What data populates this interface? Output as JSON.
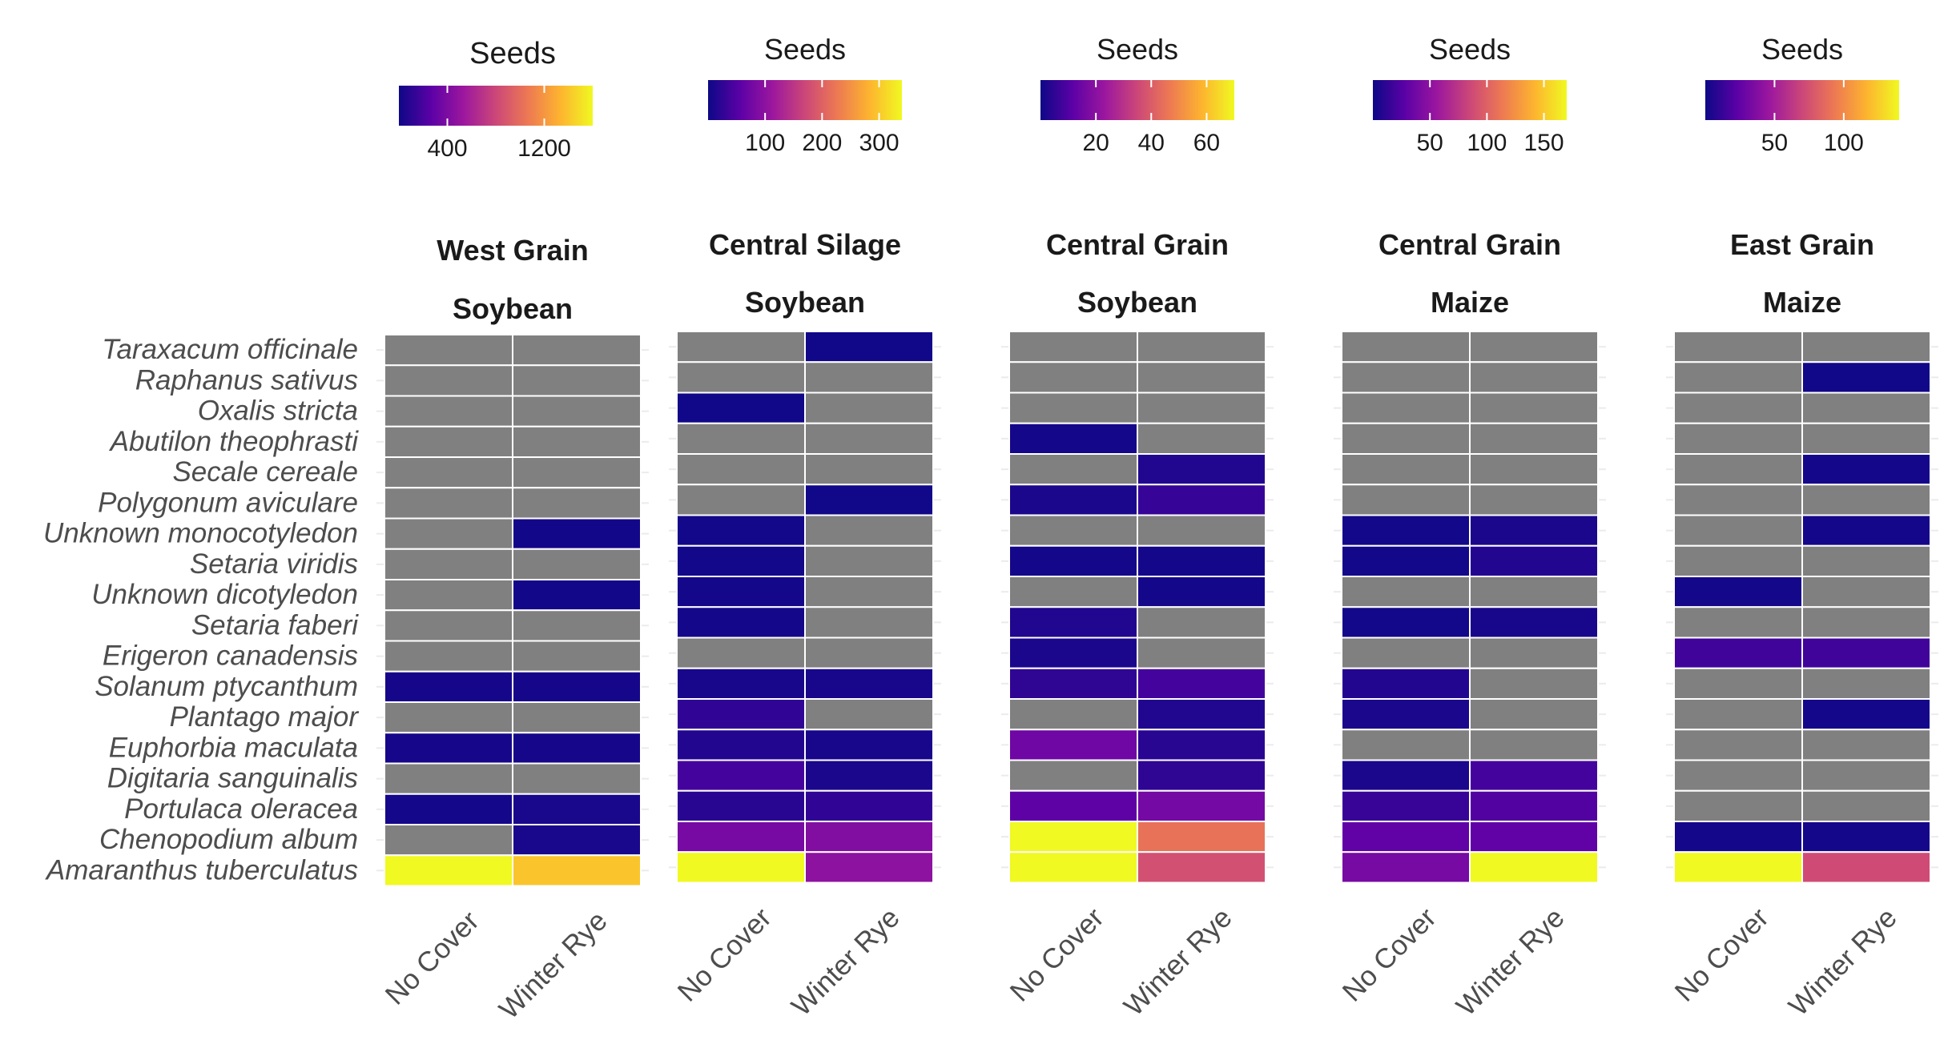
{
  "chart_data": {
    "type": "heatmap",
    "title": "",
    "xlabel": "",
    "ylabel": "",
    "legend_title": "Seeds",
    "missing_color": "#808080",
    "colormap": "plasma",
    "colormap_stops": [
      "#0d0887",
      "#5c01a6",
      "#9c179e",
      "#cc4778",
      "#ed7953",
      "#fdb42f",
      "#f0f921"
    ],
    "species": [
      "Taraxacum officinale",
      "Raphanus sativus",
      "Oxalis stricta",
      "Abutilon theophrasti",
      "Secale cereale",
      "Polygonum aviculare",
      "Unknown monocotyledon",
      "Setaria viridis",
      "Unknown dicotyledon",
      "Setaria faberi",
      "Erigeron canadensis",
      "Solanum ptycanthum",
      "Plantago major",
      "Euphorbia maculata",
      "Digitaria sanguinalis",
      "Portulaca oleracea",
      "Chenopodium album",
      "Amaranthus tuberculatus"
    ],
    "treatments": [
      "No Cover",
      "Winter Rye"
    ],
    "panels": [
      {
        "site": "West Grain",
        "crop": "Soybean",
        "range": [
          0,
          1600
        ],
        "ticks": [
          400,
          1200
        ],
        "values": [
          [
            null,
            null
          ],
          [
            null,
            null
          ],
          [
            null,
            null
          ],
          [
            null,
            null
          ],
          [
            null,
            null
          ],
          [
            null,
            null
          ],
          [
            null,
            20
          ],
          [
            null,
            null
          ],
          [
            null,
            20
          ],
          [
            null,
            null
          ],
          [
            null,
            null
          ],
          [
            30,
            30
          ],
          [
            null,
            null
          ],
          [
            30,
            30
          ],
          [
            null,
            null
          ],
          [
            25,
            40
          ],
          [
            null,
            40
          ],
          [
            1600,
            1400
          ]
        ]
      },
      {
        "site": "Central Silage",
        "crop": "Soybean",
        "range": [
          0,
          340
        ],
        "ticks": [
          100,
          200,
          300
        ],
        "values": [
          [
            null,
            2
          ],
          [
            null,
            null
          ],
          [
            2,
            null
          ],
          [
            null,
            null
          ],
          [
            null,
            null
          ],
          [
            null,
            2
          ],
          [
            4,
            null
          ],
          [
            4,
            null
          ],
          [
            5,
            null
          ],
          [
            6,
            null
          ],
          [
            null,
            null
          ],
          [
            8,
            8
          ],
          [
            25,
            null
          ],
          [
            15,
            8
          ],
          [
            40,
            10
          ],
          [
            20,
            25
          ],
          [
            80,
            90
          ],
          [
            340,
            100
          ]
        ]
      },
      {
        "site": "Central Grain",
        "crop": "Soybean",
        "range": [
          0,
          70
        ],
        "ticks": [
          20,
          40,
          60
        ],
        "values": [
          [
            null,
            null
          ],
          [
            null,
            null
          ],
          [
            null,
            null
          ],
          [
            1,
            null
          ],
          [
            null,
            3
          ],
          [
            2,
            6
          ],
          [
            null,
            null
          ],
          [
            1,
            1
          ],
          [
            null,
            1
          ],
          [
            3,
            null
          ],
          [
            2,
            null
          ],
          [
            5,
            8
          ],
          [
            null,
            3
          ],
          [
            15,
            4
          ],
          [
            null,
            5
          ],
          [
            12,
            16
          ],
          [
            70,
            45
          ],
          [
            70,
            37
          ]
        ]
      },
      {
        "site": "Central Grain",
        "crop": "Maize",
        "range": [
          0,
          170
        ],
        "ticks": [
          50,
          100,
          150
        ],
        "values": [
          [
            null,
            null
          ],
          [
            null,
            null
          ],
          [
            null,
            null
          ],
          [
            null,
            null
          ],
          [
            null,
            null
          ],
          [
            null,
            null
          ],
          [
            2,
            5
          ],
          [
            2,
            8
          ],
          [
            null,
            null
          ],
          [
            2,
            4
          ],
          [
            null,
            null
          ],
          [
            8,
            null
          ],
          [
            5,
            null
          ],
          [
            null,
            null
          ],
          [
            5,
            20
          ],
          [
            15,
            25
          ],
          [
            30,
            30
          ],
          [
            40,
            170
          ]
        ]
      },
      {
        "site": "East Grain",
        "crop": "Maize",
        "range": [
          0,
          140
        ],
        "ticks": [
          50,
          100
        ],
        "values": [
          [
            null,
            null
          ],
          [
            null,
            1
          ],
          [
            null,
            null
          ],
          [
            null,
            null
          ],
          [
            null,
            2
          ],
          [
            null,
            null
          ],
          [
            null,
            2
          ],
          [
            null,
            null
          ],
          [
            2,
            null
          ],
          [
            null,
            null
          ],
          [
            15,
            15
          ],
          [
            null,
            null
          ],
          [
            null,
            2
          ],
          [
            null,
            null
          ],
          [
            null,
            null
          ],
          [
            null,
            null
          ],
          [
            2,
            2
          ],
          [
            140,
            72
          ]
        ]
      }
    ]
  }
}
